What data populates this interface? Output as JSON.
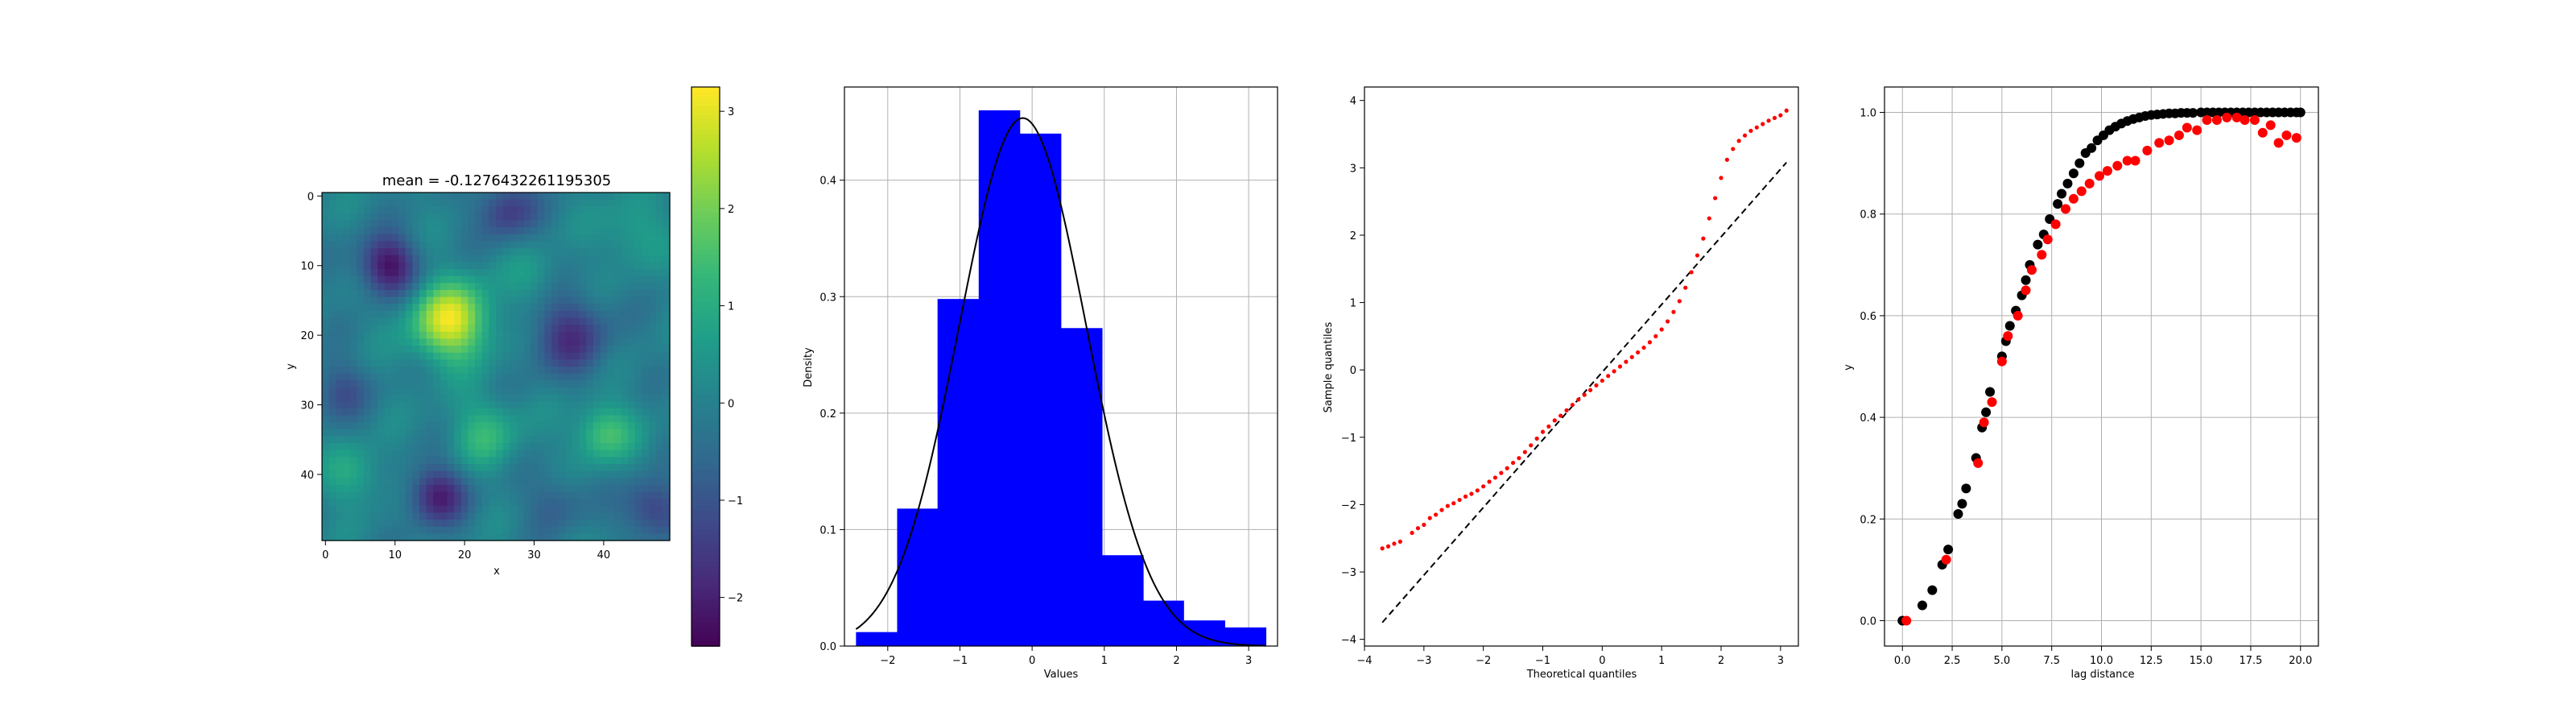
{
  "colors": {
    "histogram": "#0000ff",
    "qq_points": "#ff0000",
    "variogram_model": "#000000",
    "variogram_empirical": "#ff0000"
  },
  "chart_data": [
    {
      "type": "heatmap",
      "title": "mean = -0.1276432261195305",
      "xlabel": "x",
      "ylabel": "y",
      "grid": false,
      "colormap": "viridis",
      "x_ticks": [
        "0",
        "10",
        "20",
        "30",
        "40"
      ],
      "y_ticks": [
        "0",
        "10",
        "20",
        "30",
        "40"
      ],
      "colorbar_ticks": [
        "3",
        "2",
        "1",
        "0",
        "−1",
        "−2"
      ],
      "colorbar_range": [
        -2.5,
        3.25
      ],
      "size": [
        50,
        50
      ],
      "blobs": [
        {
          "x": 18,
          "y": 18,
          "amp": 3.0,
          "sigma": 4.0
        },
        {
          "x": 40,
          "y": 34,
          "amp": 1.6,
          "sigma": 3.0
        },
        {
          "x": 23,
          "y": 34,
          "amp": 1.2,
          "sigma": 3.5
        },
        {
          "x": 9,
          "y": 10,
          "amp": -2.3,
          "sigma": 3.0
        },
        {
          "x": 16,
          "y": 43,
          "amp": -2.0,
          "sigma": 3.0
        },
        {
          "x": 35,
          "y": 20,
          "amp": -1.6,
          "sigma": 4.0
        },
        {
          "x": 26,
          "y": 2,
          "amp": -1.5,
          "sigma": 3.0
        },
        {
          "x": 47,
          "y": 45,
          "amp": -1.5,
          "sigma": 3.0
        },
        {
          "x": 4,
          "y": 40,
          "amp": 1.0,
          "sigma": 3.0
        },
        {
          "x": 44,
          "y": 5,
          "amp": 0.8,
          "sigma": 3.5
        },
        {
          "x": 30,
          "y": 12,
          "amp": 0.6,
          "sigma": 3.0
        },
        {
          "x": 2,
          "y": 28,
          "amp": -1.0,
          "sigma": 3.0
        },
        {
          "x": 33,
          "y": 44,
          "amp": -0.8,
          "sigma": 3.0
        }
      ]
    },
    {
      "type": "bar",
      "xlabel": "Values",
      "ylabel": "Density",
      "grid": true,
      "xlim": [
        -2.6,
        3.4
      ],
      "ylim": [
        0,
        0.48
      ],
      "x_ticks": [
        "−2",
        "−1",
        "0",
        "1",
        "2",
        "3"
      ],
      "x_tick_values": [
        -2,
        -1,
        0,
        1,
        2,
        3
      ],
      "y_ticks": [
        "0.0",
        "0.1",
        "0.2",
        "0.3",
        "0.4"
      ],
      "y_tick_values": [
        0,
        0.1,
        0.2,
        0.3,
        0.4
      ],
      "bin_edges": [
        -2.44,
        -1.87,
        -1.31,
        -0.74,
        -0.17,
        0.4,
        0.97,
        1.54,
        2.1,
        2.67,
        3.24
      ],
      "values": [
        0.012,
        0.118,
        0.298,
        0.46,
        0.44,
        0.273,
        0.078,
        0.039,
        0.022,
        0.016
      ],
      "curve": {
        "type": "normal-pdf",
        "mean": -0.13,
        "sd": 0.88
      }
    },
    {
      "type": "scatter",
      "xlabel": "Theoretical quantiles",
      "ylabel": "Sample quantiles",
      "grid": false,
      "xlim": [
        -4,
        3.3
      ],
      "ylim": [
        -4.1,
        4.2
      ],
      "x_ticks": [
        "−4",
        "−3",
        "−2",
        "−1",
        "0",
        "1",
        "2",
        "3"
      ],
      "x_tick_values": [
        -4,
        -3,
        -2,
        -1,
        0,
        1,
        2,
        3
      ],
      "y_ticks": [
        "−4",
        "−3",
        "−2",
        "−1",
        "0",
        "1",
        "2",
        "3",
        "4"
      ],
      "y_tick_values": [
        -4,
        -3,
        -2,
        -1,
        0,
        1,
        2,
        3,
        4
      ],
      "reference_line": {
        "x": [
          -3.7,
          3.1
        ],
        "y": [
          -3.75,
          3.08
        ]
      },
      "points": [
        [
          -3.7,
          -2.65
        ],
        [
          -3.6,
          -2.62
        ],
        [
          -3.5,
          -2.58
        ],
        [
          -3.4,
          -2.55
        ],
        [
          -3.2,
          -2.42
        ],
        [
          -3.1,
          -2.35
        ],
        [
          -3.0,
          -2.3
        ],
        [
          -2.9,
          -2.2
        ],
        [
          -2.8,
          -2.15
        ],
        [
          -2.7,
          -2.08
        ],
        [
          -2.6,
          -2.02
        ],
        [
          -2.5,
          -1.98
        ],
        [
          -2.4,
          -1.93
        ],
        [
          -2.3,
          -1.88
        ],
        [
          -2.2,
          -1.84
        ],
        [
          -2.1,
          -1.79
        ],
        [
          -2.0,
          -1.73
        ],
        [
          -1.9,
          -1.66
        ],
        [
          -1.8,
          -1.6
        ],
        [
          -1.7,
          -1.53
        ],
        [
          -1.6,
          -1.46
        ],
        [
          -1.5,
          -1.38
        ],
        [
          -1.4,
          -1.31
        ],
        [
          -1.3,
          -1.22
        ],
        [
          -1.2,
          -1.12
        ],
        [
          -1.1,
          -1.02
        ],
        [
          -1.0,
          -0.92
        ],
        [
          -0.9,
          -0.84
        ],
        [
          -0.8,
          -0.75
        ],
        [
          -0.7,
          -0.68
        ],
        [
          -0.6,
          -0.6
        ],
        [
          -0.5,
          -0.52
        ],
        [
          -0.4,
          -0.44
        ],
        [
          -0.3,
          -0.37
        ],
        [
          -0.2,
          -0.3
        ],
        [
          -0.1,
          -0.23
        ],
        [
          0.0,
          -0.16
        ],
        [
          0.1,
          -0.09
        ],
        [
          0.2,
          -0.02
        ],
        [
          0.3,
          0.05
        ],
        [
          0.4,
          0.12
        ],
        [
          0.5,
          0.19
        ],
        [
          0.6,
          0.26
        ],
        [
          0.7,
          0.33
        ],
        [
          0.8,
          0.41
        ],
        [
          0.9,
          0.5
        ],
        [
          1.0,
          0.6
        ],
        [
          1.1,
          0.72
        ],
        [
          1.2,
          0.86
        ],
        [
          1.3,
          1.02
        ],
        [
          1.4,
          1.22
        ],
        [
          1.5,
          1.45
        ],
        [
          1.6,
          1.7
        ],
        [
          1.7,
          1.95
        ],
        [
          1.8,
          2.25
        ],
        [
          1.9,
          2.55
        ],
        [
          2.0,
          2.85
        ],
        [
          2.1,
          3.12
        ],
        [
          2.2,
          3.28
        ],
        [
          2.3,
          3.4
        ],
        [
          2.4,
          3.48
        ],
        [
          2.5,
          3.55
        ],
        [
          2.6,
          3.6
        ],
        [
          2.7,
          3.65
        ],
        [
          2.8,
          3.7
        ],
        [
          2.9,
          3.74
        ],
        [
          3.0,
          3.78
        ],
        [
          3.1,
          3.85
        ]
      ]
    },
    {
      "type": "scatter",
      "xlabel": "lag distance",
      "ylabel": "y",
      "grid": true,
      "xlim": [
        -0.9,
        20.9
      ],
      "ylim": [
        -0.05,
        1.05
      ],
      "x_ticks": [
        "0.0",
        "2.5",
        "5.0",
        "7.5",
        "10.0",
        "12.5",
        "15.0",
        "17.5",
        "20.0"
      ],
      "x_tick_values": [
        0,
        2.5,
        5,
        7.5,
        10,
        12.5,
        15,
        17.5,
        20
      ],
      "y_ticks": [
        "0.0",
        "0.2",
        "0.4",
        "0.6",
        "0.8",
        "1.0"
      ],
      "y_tick_values": [
        0,
        0.2,
        0.4,
        0.6,
        0.8,
        1.0
      ],
      "series": [
        {
          "points": [
            [
              0.0,
              0.0
            ],
            [
              1.0,
              0.03
            ],
            [
              1.5,
              0.06
            ],
            [
              2.0,
              0.11
            ],
            [
              2.3,
              0.14
            ],
            [
              2.8,
              0.21
            ],
            [
              3.0,
              0.23
            ],
            [
              3.2,
              0.26
            ],
            [
              3.7,
              0.32
            ],
            [
              4.0,
              0.38
            ],
            [
              4.2,
              0.41
            ],
            [
              4.4,
              0.45
            ],
            [
              5.0,
              0.52
            ],
            [
              5.2,
              0.55
            ],
            [
              5.4,
              0.58
            ],
            [
              5.7,
              0.61
            ],
            [
              6.0,
              0.64
            ],
            [
              6.2,
              0.67
            ],
            [
              6.4,
              0.7
            ],
            [
              6.8,
              0.74
            ],
            [
              7.1,
              0.76
            ],
            [
              7.4,
              0.79
            ],
            [
              7.8,
              0.82
            ],
            [
              8.0,
              0.84
            ],
            [
              8.3,
              0.86
            ],
            [
              8.6,
              0.88
            ],
            [
              8.9,
              0.9
            ],
            [
              9.2,
              0.92
            ],
            [
              9.5,
              0.93
            ],
            [
              9.8,
              0.945
            ],
            [
              10.1,
              0.955
            ],
            [
              10.4,
              0.965
            ],
            [
              10.7,
              0.972
            ],
            [
              11.0,
              0.978
            ],
            [
              11.3,
              0.983
            ],
            [
              11.6,
              0.987
            ],
            [
              11.9,
              0.99
            ],
            [
              12.2,
              0.993
            ],
            [
              12.5,
              0.995
            ],
            [
              12.8,
              0.996
            ],
            [
              13.1,
              0.997
            ],
            [
              13.4,
              0.998
            ],
            [
              13.7,
              0.998
            ],
            [
              14.0,
              0.999
            ],
            [
              14.3,
              0.999
            ],
            [
              14.6,
              0.999
            ],
            [
              15.0,
              1.0
            ],
            [
              15.3,
              1.0
            ],
            [
              15.6,
              1.0
            ],
            [
              15.9,
              1.0
            ],
            [
              16.2,
              1.0
            ],
            [
              16.5,
              1.0
            ],
            [
              16.8,
              1.0
            ],
            [
              17.1,
              1.0
            ],
            [
              17.4,
              1.0
            ],
            [
              17.7,
              1.0
            ],
            [
              18.0,
              1.0
            ],
            [
              18.3,
              1.0
            ],
            [
              18.6,
              1.0
            ],
            [
              18.9,
              1.0
            ],
            [
              19.2,
              1.0
            ],
            [
              19.5,
              1.0
            ],
            [
              19.8,
              1.0
            ],
            [
              20.0,
              1.0
            ]
          ]
        },
        {
          "points": [
            [
              0.2,
              0.0
            ],
            [
              2.2,
              0.12
            ],
            [
              3.8,
              0.31
            ],
            [
              4.1,
              0.39
            ],
            [
              4.5,
              0.43
            ],
            [
              5.0,
              0.51
            ],
            [
              5.3,
              0.56
            ],
            [
              5.8,
              0.6
            ],
            [
              6.2,
              0.65
            ],
            [
              6.5,
              0.69
            ],
            [
              7.0,
              0.72
            ],
            [
              7.3,
              0.75
            ],
            [
              7.7,
              0.78
            ],
            [
              8.2,
              0.81
            ],
            [
              8.6,
              0.83
            ],
            [
              9.0,
              0.845
            ],
            [
              9.4,
              0.86
            ],
            [
              9.9,
              0.875
            ],
            [
              10.3,
              0.885
            ],
            [
              10.8,
              0.895
            ],
            [
              11.3,
              0.905
            ],
            [
              11.7,
              0.905
            ],
            [
              12.3,
              0.925
            ],
            [
              12.9,
              0.94
            ],
            [
              13.4,
              0.945
            ],
            [
              13.9,
              0.955
            ],
            [
              14.3,
              0.97
            ],
            [
              14.8,
              0.965
            ],
            [
              15.3,
              0.985
            ],
            [
              15.8,
              0.985
            ],
            [
              16.3,
              0.99
            ],
            [
              16.8,
              0.99
            ],
            [
              17.2,
              0.985
            ],
            [
              17.7,
              0.985
            ],
            [
              18.1,
              0.96
            ],
            [
              18.5,
              0.975
            ],
            [
              18.9,
              0.94
            ],
            [
              19.3,
              0.955
            ],
            [
              19.8,
              0.95
            ]
          ]
        }
      ]
    }
  ]
}
